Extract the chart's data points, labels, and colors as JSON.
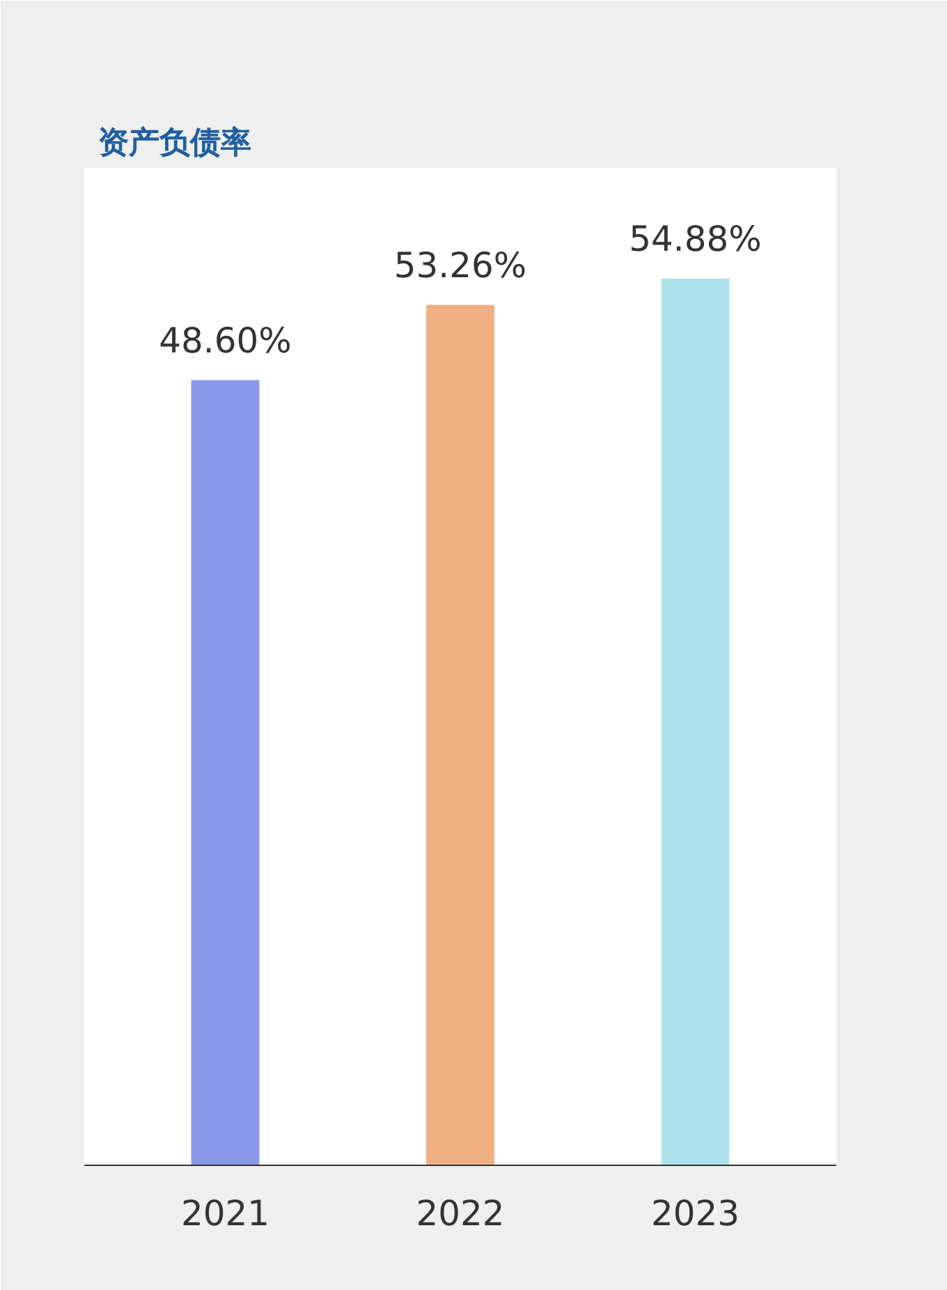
{
  "chart_data": {
    "type": "bar",
    "title": "资产负债率",
    "categories": [
      "2021",
      "2022",
      "2023"
    ],
    "values": [
      48.6,
      53.26,
      54.88
    ],
    "colors": [
      "#8a96e8",
      "#f0b084",
      "#ade2ea"
    ],
    "value_labels": [
      "48.60%",
      "53.26%",
      "54.88%"
    ],
    "tick_labels": "x",
    "grid": false
  }
}
